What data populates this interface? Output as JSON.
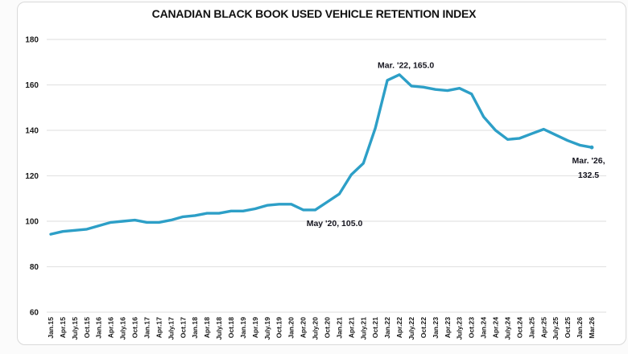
{
  "chart_data": {
    "type": "line",
    "title": "CANADIAN BLACK BOOK USED VEHICLE RETENTION INDEX",
    "categories": [
      "Jan.15",
      "Apr.15",
      "July.15",
      "Oct.15",
      "Jan.16",
      "Apr.16",
      "July.16",
      "Oct.16",
      "Jan.17",
      "Apr.17",
      "July.17",
      "Oct.17",
      "Jan.18",
      "Apr.18",
      "July.18",
      "Oct.18",
      "Jan.19",
      "Apr.19",
      "July.19",
      "Oct.19",
      "Jan.20",
      "Apr.20",
      "July.20",
      "Oct.20",
      "Jan.21",
      "Apr.21",
      "July.21",
      "Oct.21",
      "Jan.22",
      "Apr.22",
      "July.22",
      "Oct.22",
      "Jan.23",
      "Apr.23",
      "July.23",
      "Oct.23",
      "Jan.24",
      "Apr.24",
      "July.24",
      "Oct.24",
      "Jan.25",
      "Apr.25",
      "July.25",
      "Oct.25",
      "Jan.26",
      "Mar.26"
    ],
    "values": [
      94.3,
      95.5,
      96.0,
      96.5,
      98.0,
      99.5,
      100.0,
      100.5,
      99.5,
      99.5,
      100.5,
      102.0,
      102.5,
      103.5,
      103.5,
      104.5,
      104.5,
      105.5,
      107.0,
      107.5,
      107.5,
      105.0,
      105.0,
      108.5,
      112.0,
      120.5,
      125.5,
      141.0,
      162.0,
      164.5,
      159.5,
      159.0,
      158.0,
      157.5,
      158.5,
      156.0,
      146.0,
      140.0,
      136.0,
      136.5,
      138.5,
      140.5,
      138.0,
      135.5,
      133.5,
      132.5
    ],
    "xlabel": "",
    "ylabel": "",
    "ylim": [
      60,
      180
    ],
    "ytick_step": 20,
    "yticks": [
      "180",
      "160",
      "140",
      "120",
      "100",
      "80",
      "60"
    ],
    "grid": "horizontal",
    "legend": "none",
    "line_color": "#2d9fc7",
    "annotations": [
      {
        "lines": [
          "May '20, 105.0"
        ],
        "anchor_index": 21.33,
        "value": 105.0,
        "offset": [
          34,
          20
        ]
      },
      {
        "lines": [
          "Mar. '22, 165.0"
        ],
        "anchor_index": 28.67,
        "value": 165.0,
        "offset": [
          13,
          -7
        ]
      },
      {
        "lines": [
          "Mar. '26,",
          "132.5"
        ],
        "anchor_index": 45,
        "value": 132.5,
        "offset": [
          -4,
          20
        ]
      }
    ]
  }
}
